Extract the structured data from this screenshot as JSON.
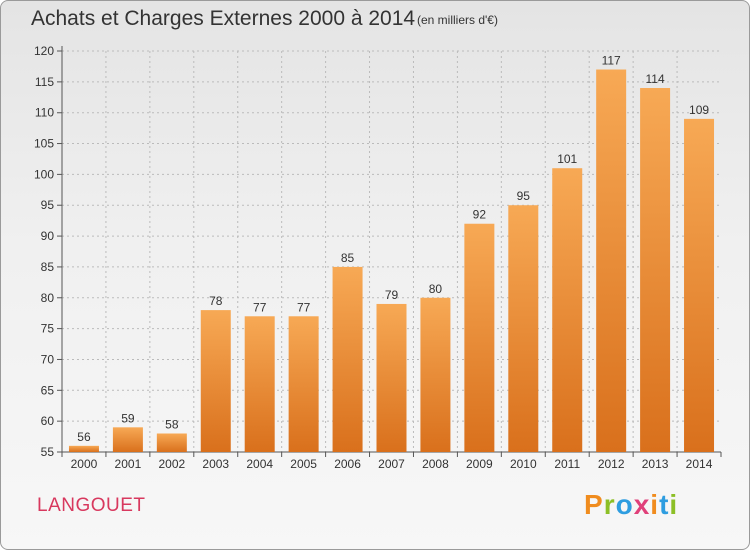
{
  "header": {
    "title": "Achats et Charges Externes 2000 à 2014",
    "subtitle": "(en milliers d'€)"
  },
  "footer": {
    "commune": "LANGOUET",
    "brand": "Proxiti"
  },
  "colors": {
    "bar_top": "#f7a955",
    "bar_bottom": "#d9701c",
    "commune": "#d8385e",
    "grid": "#bbbbbb",
    "brand_letters": [
      "#f08c1e",
      "#8cbf26",
      "#2e9de0",
      "#e0407a",
      "#f08c1e",
      "#2e9de0",
      "#8cbf26"
    ]
  },
  "chart_data": {
    "type": "bar",
    "title": "Achats et Charges Externes 2000 à 2014",
    "subtitle": "(en milliers d'€)",
    "categories": [
      "2000",
      "2001",
      "2002",
      "2003",
      "2004",
      "2005",
      "2006",
      "2007",
      "2008",
      "2009",
      "2010",
      "2011",
      "2012",
      "2013",
      "2014"
    ],
    "values": [
      56,
      59,
      58,
      78,
      77,
      77,
      85,
      79,
      80,
      92,
      95,
      101,
      117,
      114,
      109
    ],
    "ylim": [
      55,
      120
    ],
    "yticks": [
      55,
      60,
      65,
      70,
      75,
      80,
      85,
      90,
      95,
      100,
      105,
      110,
      115,
      120
    ],
    "grid": true,
    "data_labels": true
  }
}
